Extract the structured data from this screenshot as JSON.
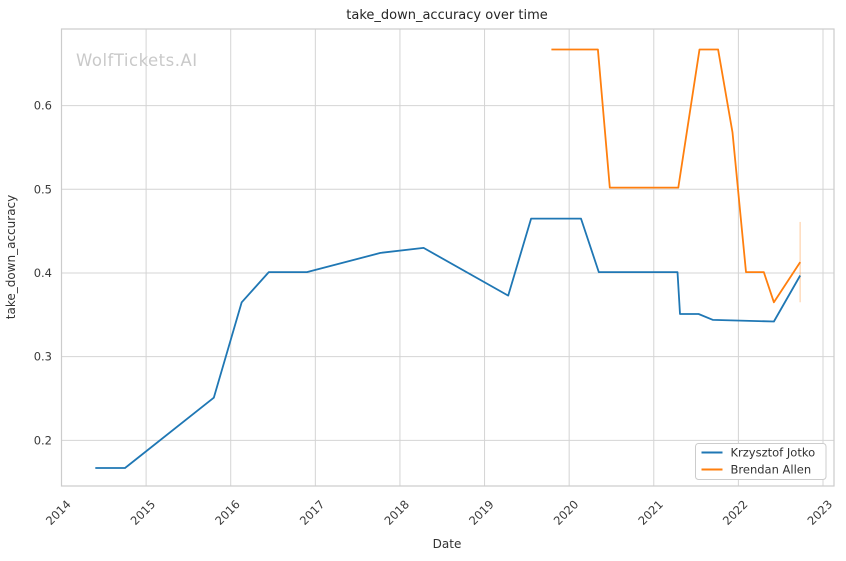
{
  "chart_data": {
    "type": "line",
    "title": "take_down_accuracy over time",
    "xlabel": "Date",
    "ylabel": "take_down_accuracy",
    "watermark": "WolfTickets.AI",
    "grid": true,
    "legend_position": "lower right",
    "xlim": [
      2014,
      2023.13
    ],
    "ylim": [
      0.1455,
      0.6915
    ],
    "xtick_values": [
      2014,
      2015,
      2016,
      2017,
      2018,
      2019,
      2020,
      2021,
      2022,
      2023
    ],
    "xtick_labels": [
      "2014",
      "2015",
      "2016",
      "2017",
      "2018",
      "2019",
      "2020",
      "2021",
      "2022",
      "2023"
    ],
    "ytick_values": [
      0.2,
      0.3,
      0.4,
      0.5,
      0.6
    ],
    "ytick_labels": [
      "0.2",
      "0.3",
      "0.4",
      "0.5",
      "0.6"
    ],
    "series": [
      {
        "name": "Krzysztof Jotko",
        "color": "#1f77b4",
        "points": [
          [
            2014.4,
            0.167
          ],
          [
            2014.75,
            0.167
          ],
          [
            2015.8,
            0.251
          ],
          [
            2016.13,
            0.365
          ],
          [
            2016.45,
            0.401
          ],
          [
            2016.9,
            0.401
          ],
          [
            2017.77,
            0.424
          ],
          [
            2018.28,
            0.43
          ],
          [
            2019.28,
            0.373
          ],
          [
            2019.55,
            0.465
          ],
          [
            2020.14,
            0.465
          ],
          [
            2020.35,
            0.401
          ],
          [
            2021.28,
            0.401
          ],
          [
            2021.31,
            0.351
          ],
          [
            2021.53,
            0.351
          ],
          [
            2021.7,
            0.344
          ],
          [
            2022.42,
            0.342
          ],
          [
            2022.73,
            0.397
          ]
        ]
      },
      {
        "name": "Brendan Allen",
        "color": "#ff7f0e",
        "points": [
          [
            2019.79,
            0.667
          ],
          [
            2020.34,
            0.667
          ],
          [
            2020.48,
            0.502
          ],
          [
            2021.29,
            0.502
          ],
          [
            2021.54,
            0.667
          ],
          [
            2021.76,
            0.667
          ],
          [
            2021.93,
            0.568
          ],
          [
            2022.09,
            0.401
          ],
          [
            2022.3,
            0.401
          ],
          [
            2022.42,
            0.365
          ],
          [
            2022.73,
            0.413
          ]
        ]
      }
    ],
    "annotations": [
      {
        "type": "vertical-segment",
        "x": 2022.73,
        "y1": 0.365,
        "y2": 0.461,
        "color": "rgba(255,127,14,0.28)"
      }
    ],
    "colors": {
      "gridline": "#d4d4d4",
      "spine": "#cccccc",
      "legend_border": "#cccccc",
      "legend_background": "#ffffff"
    }
  }
}
